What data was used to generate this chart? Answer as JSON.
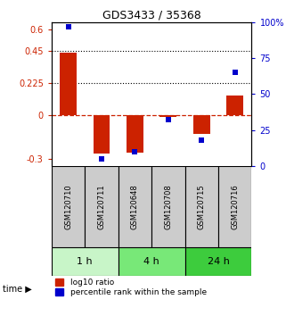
{
  "title": "GDS3433 / 35368",
  "samples": [
    "GSM120710",
    "GSM120711",
    "GSM120648",
    "GSM120708",
    "GSM120715",
    "GSM120716"
  ],
  "log10_ratio": [
    0.44,
    -0.265,
    -0.255,
    -0.01,
    -0.13,
    0.14
  ],
  "percentile_rank": [
    97,
    5,
    10,
    32,
    18,
    65
  ],
  "time_groups": [
    {
      "label": "1 h",
      "start": 0,
      "end": 2,
      "color": "#c8f5c8"
    },
    {
      "label": "4 h",
      "start": 2,
      "end": 4,
      "color": "#78e878"
    },
    {
      "label": "24 h",
      "start": 4,
      "end": 6,
      "color": "#3dcc3d"
    }
  ],
  "ylim_left": [
    -0.35,
    0.65
  ],
  "ylim_right": [
    0,
    100
  ],
  "yticks_left": [
    -0.3,
    0,
    0.225,
    0.45,
    0.6
  ],
  "ytick_labels_left": [
    "-0.3",
    "0",
    "0.225",
    "0.45",
    "0.6"
  ],
  "yticks_right": [
    0,
    25,
    50,
    75,
    100
  ],
  "ytick_labels_right": [
    "0",
    "25",
    "50",
    "75",
    "100%"
  ],
  "hlines": [
    0.45,
    0.225
  ],
  "bar_color": "#cc2200",
  "dot_color": "#0000cc",
  "label_color_left": "#cc2200",
  "label_color_right": "#0000cc",
  "zero_line_color": "#cc2200",
  "zero_line_style": "--",
  "hline_style": ":",
  "hline_color": "black",
  "bar_width": 0.5,
  "dot_size": 25
}
